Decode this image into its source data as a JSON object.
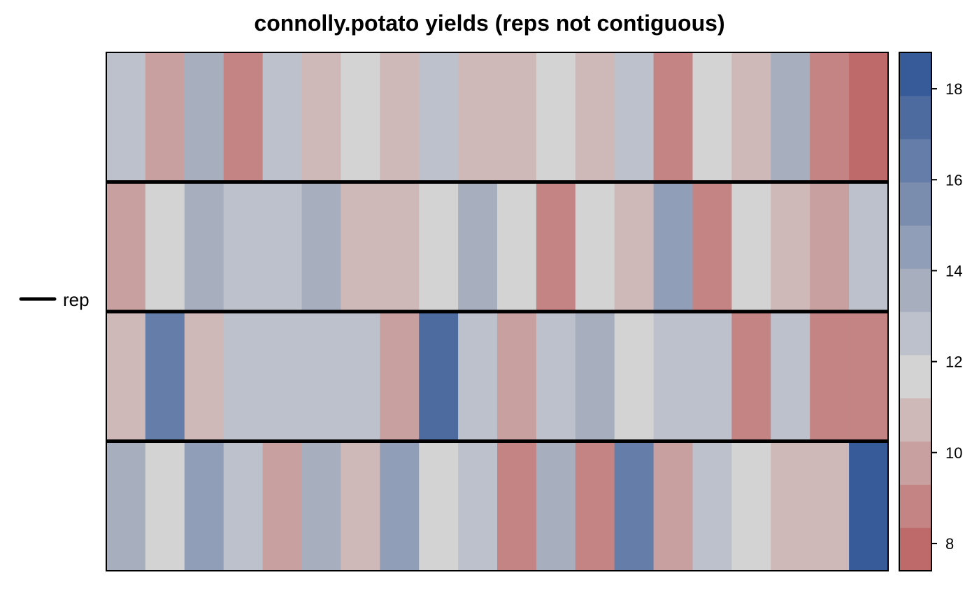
{
  "chart_data": {
    "type": "heatmap",
    "title": "connolly.potato yields (reps not contiguous)",
    "xlabel": "",
    "ylabel": "",
    "n_rows": 4,
    "n_cols": 20,
    "values": [
      [
        13,
        10,
        14,
        9,
        13,
        11,
        12,
        11,
        13,
        11,
        11,
        12,
        11,
        13,
        9,
        12,
        11,
        14,
        9,
        8
      ],
      [
        10,
        12,
        14,
        13,
        12.5,
        14,
        11,
        11,
        12,
        14,
        12,
        9,
        12,
        11,
        15,
        9,
        12,
        11,
        10,
        12.5
      ],
      [
        11,
        16,
        11,
        12.5,
        13,
        13,
        12.5,
        10,
        17,
        12.5,
        10,
        12.5,
        14,
        12,
        12.5,
        12.5,
        9,
        13,
        9,
        9
      ],
      [
        14,
        12,
        15,
        12.5,
        10,
        14,
        11,
        15,
        12,
        12.5,
        9,
        14,
        9,
        16,
        10,
        13,
        12,
        11,
        11,
        18
      ]
    ],
    "colorbar": {
      "min": 7.4,
      "max": 18.8,
      "ticks": [
        8,
        10,
        12,
        14,
        16,
        18
      ],
      "bin_colors": [
        "#BE6A6A",
        "#C38483",
        "#C9A0A0",
        "#CEB9B8",
        "#D3D3D3",
        "#BCC1CB",
        "#A7AFBF",
        "#909EB8",
        "#7A8DAF",
        "#657DA9",
        "#4E6BA0",
        "#375B99"
      ]
    },
    "legend": {
      "label": "rep",
      "placement": "left",
      "line_color": "#000000"
    },
    "block_separators_after_rows": [
      1,
      2,
      3
    ],
    "grid": false
  }
}
